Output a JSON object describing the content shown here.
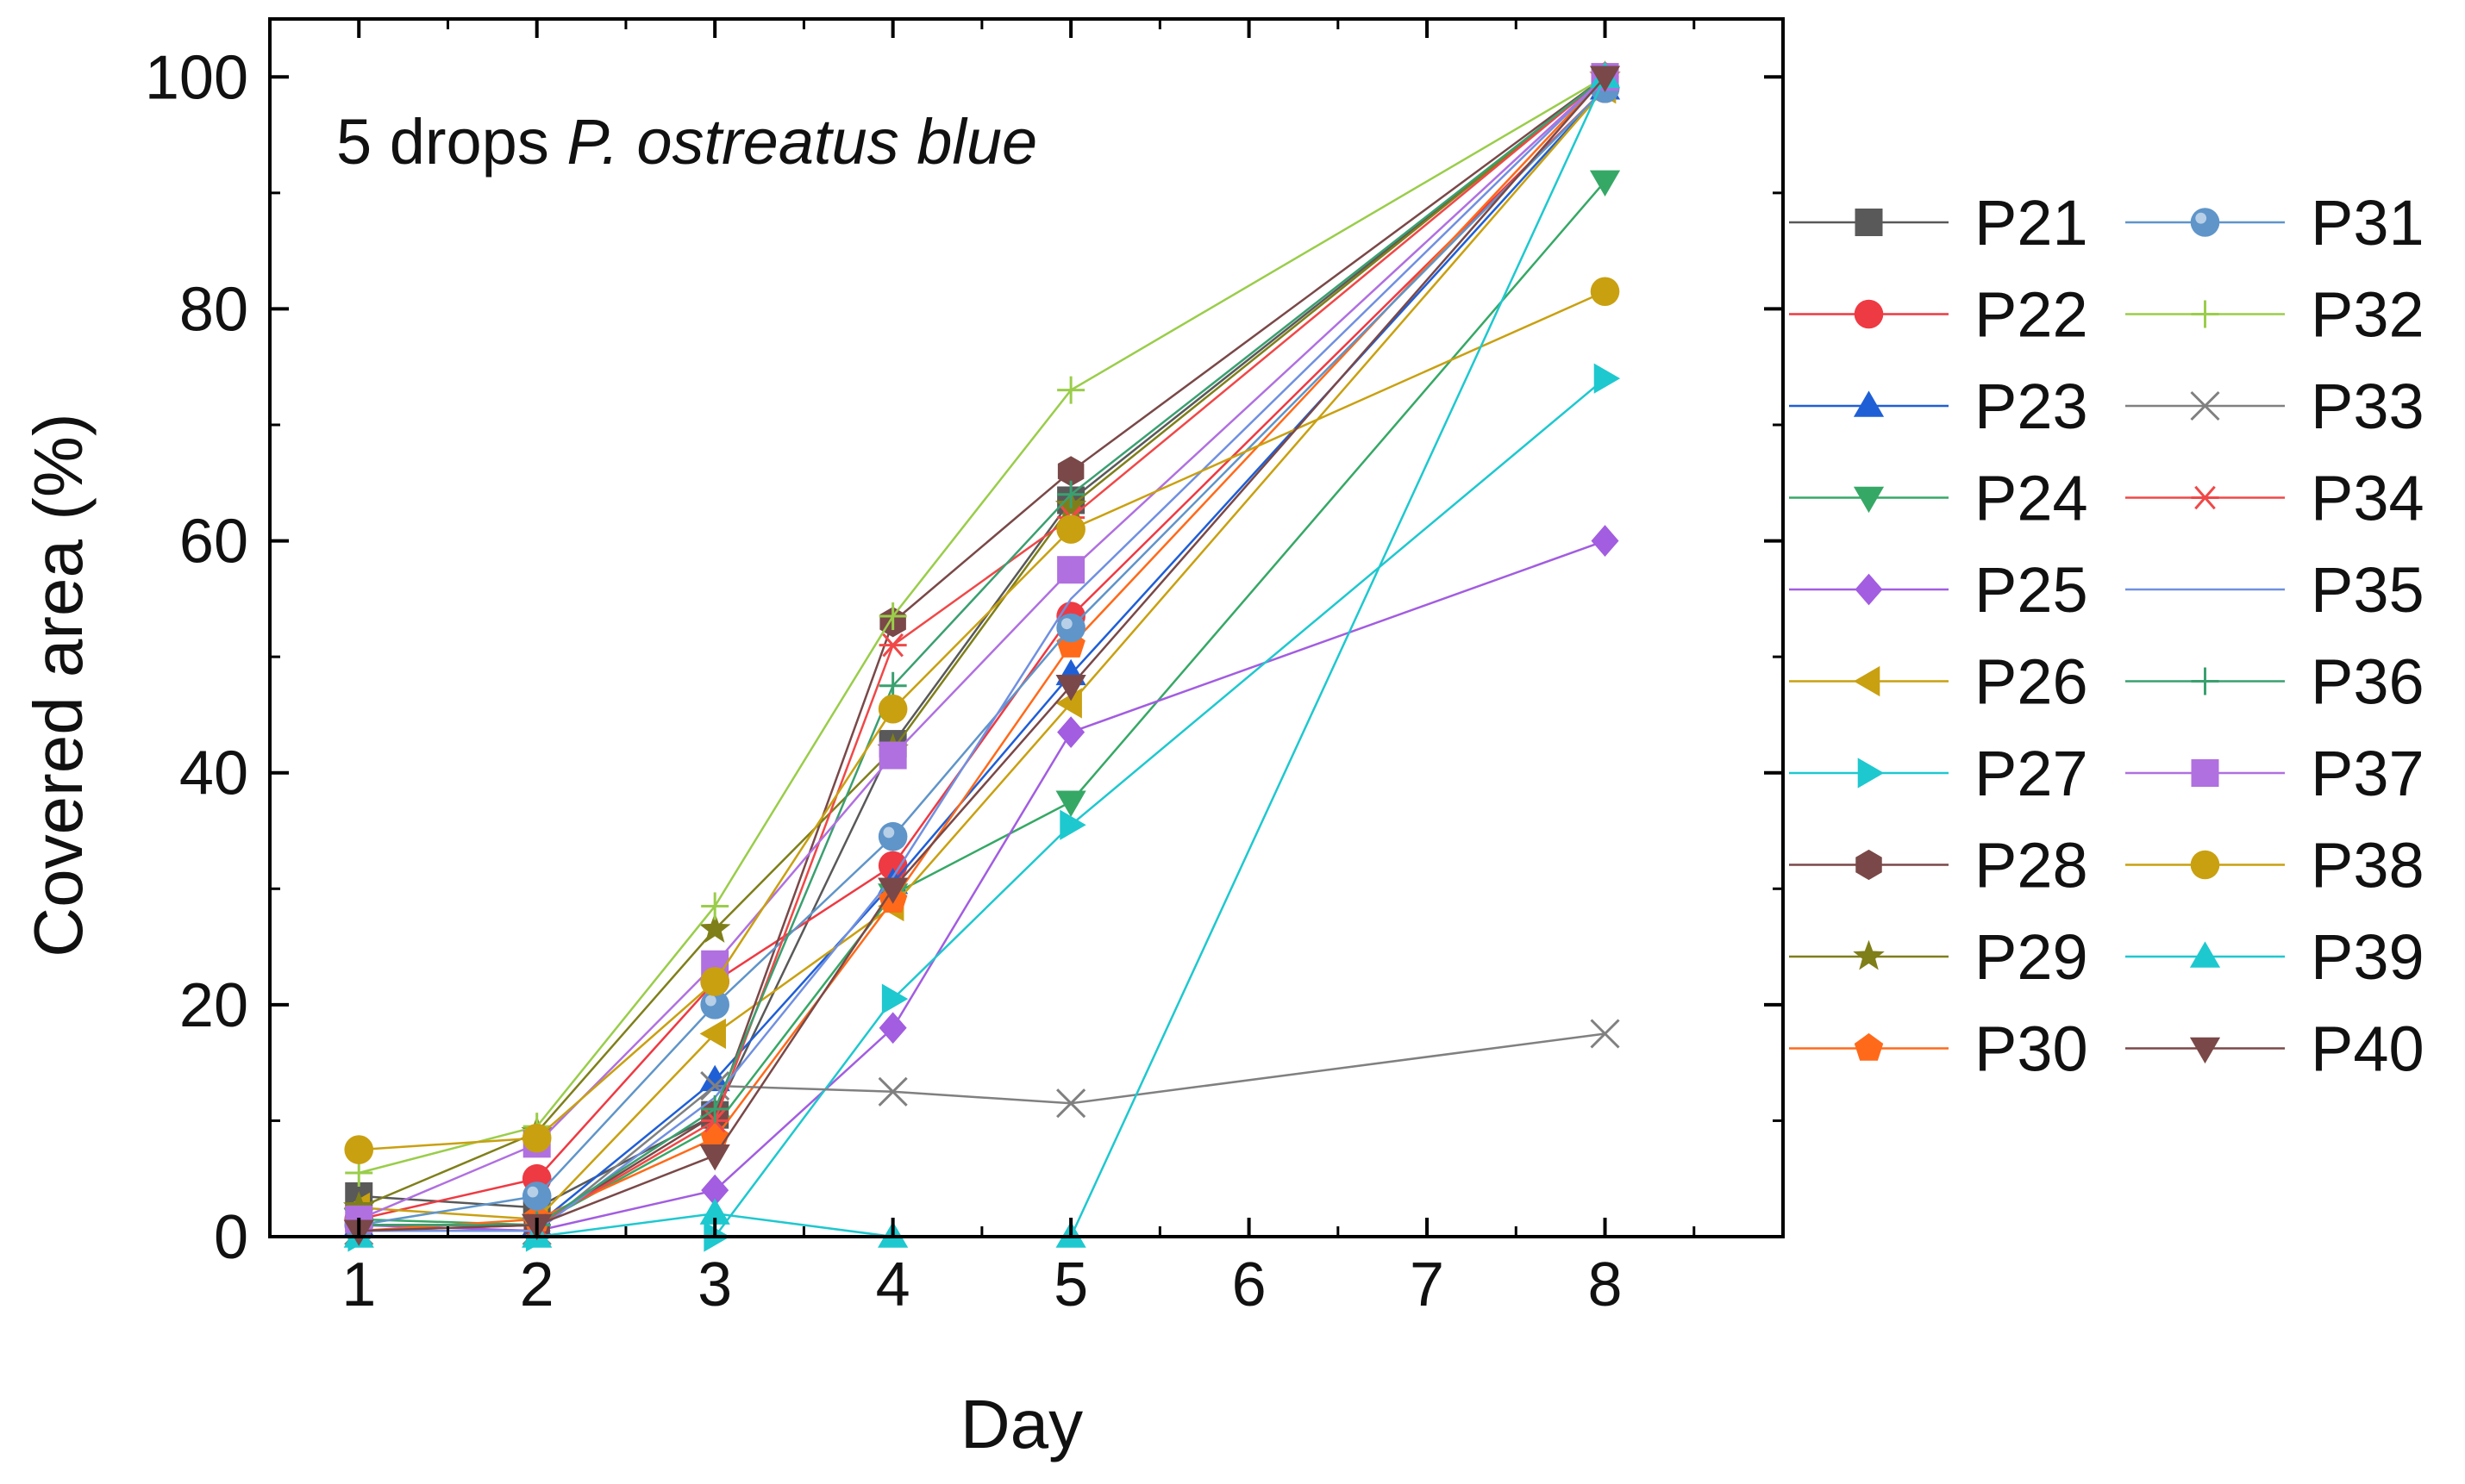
{
  "chart_data": {
    "type": "line",
    "title": "",
    "xlabel": "Day",
    "ylabel": "Covered area (%)",
    "annotation": {
      "prefix": "5 drops ",
      "italic": "P. ostreatus blue"
    },
    "x": [
      1,
      2,
      3,
      4,
      5,
      8
    ],
    "xticks": [
      1,
      2,
      3,
      4,
      5,
      6,
      7,
      8
    ],
    "yticks": [
      0,
      20,
      40,
      60,
      80,
      100
    ],
    "xlim": [
      0.5,
      9.0
    ],
    "ylim": [
      0,
      105
    ],
    "legend_position": "right, two columns",
    "series": [
      {
        "name": "P21",
        "color": "#595959",
        "marker": "square",
        "values": [
          3.5,
          2.5,
          10.5,
          42.5,
          63.5,
          100
        ]
      },
      {
        "name": "P22",
        "color": "#ee3a43",
        "marker": "circle",
        "values": [
          1.5,
          5.0,
          22.0,
          32.0,
          53.5,
          99
        ]
      },
      {
        "name": "P23",
        "color": "#1f5fd6",
        "marker": "triangle-up",
        "values": [
          1.0,
          1.0,
          13.5,
          30.5,
          48.5,
          99
        ]
      },
      {
        "name": "P24",
        "color": "#36a866",
        "marker": "triangle-down",
        "values": [
          1.5,
          1.0,
          9.5,
          29.5,
          37.5,
          91
        ]
      },
      {
        "name": "P25",
        "color": "#a25de0",
        "marker": "diamond",
        "values": [
          1.0,
          0.5,
          4.0,
          18.0,
          43.5,
          60
        ]
      },
      {
        "name": "P26",
        "color": "#c9a010",
        "marker": "triangle-left",
        "values": [
          2.5,
          1.5,
          17.5,
          28.5,
          46.0,
          99
        ]
      },
      {
        "name": "P27",
        "color": "#1ec8cf",
        "marker": "triangle-right",
        "values": [
          0.0,
          0.0,
          0.0,
          20.5,
          35.5,
          74
        ]
      },
      {
        "name": "P28",
        "color": "#7a4848",
        "marker": "hexagon",
        "values": [
          1.0,
          1.0,
          10.5,
          53.0,
          66.0,
          100
        ]
      },
      {
        "name": "P29",
        "color": "#7f7f1a",
        "marker": "star",
        "values": [
          2.5,
          9.0,
          26.5,
          42.0,
          63.0,
          100
        ]
      },
      {
        "name": "P30",
        "color": "#ff6a1a",
        "marker": "pentagon",
        "values": [
          0.5,
          1.5,
          8.5,
          29.0,
          51.0,
          100
        ]
      },
      {
        "name": "P31",
        "color": "#5f95c9",
        "marker": "sphere",
        "values": [
          1.0,
          3.5,
          20.0,
          34.5,
          52.5,
          99
        ]
      },
      {
        "name": "P32",
        "color": "#9acd4a",
        "marker": "plus",
        "values": [
          5.5,
          9.5,
          28.5,
          53.5,
          73.0,
          100
        ]
      },
      {
        "name": "P33",
        "color": "#808080",
        "marker": "x",
        "values": [
          0.5,
          0.5,
          13.0,
          12.5,
          11.5,
          17.5
        ]
      },
      {
        "name": "P34",
        "color": "#f04848",
        "marker": "asterisk",
        "values": [
          0.5,
          1.0,
          10.0,
          51.0,
          62.0,
          100
        ]
      },
      {
        "name": "P35",
        "color": "#7090e0",
        "marker": "line",
        "values": [
          0.5,
          0.5,
          12.0,
          31.0,
          55.0,
          100
        ]
      },
      {
        "name": "P36",
        "color": "#3aa070",
        "marker": "plus",
        "values": [
          1.0,
          1.0,
          11.0,
          47.5,
          64.0,
          100
        ]
      },
      {
        "name": "P37",
        "color": "#b070e0",
        "marker": "square",
        "values": [
          1.5,
          8.0,
          23.5,
          41.5,
          57.5,
          100
        ]
      },
      {
        "name": "P38",
        "color": "#c9a010",
        "marker": "circle",
        "values": [
          7.5,
          8.5,
          22.0,
          45.5,
          61.0,
          81.5
        ]
      },
      {
        "name": "P39",
        "color": "#1ec8cf",
        "marker": "triangle-up",
        "values": [
          0.0,
          0.0,
          2.0,
          0.0,
          0.0,
          100
        ]
      },
      {
        "name": "P40",
        "color": "#7a4848",
        "marker": "triangle-down",
        "values": [
          0.5,
          1.0,
          7.0,
          30.0,
          47.5,
          100
        ]
      }
    ]
  }
}
